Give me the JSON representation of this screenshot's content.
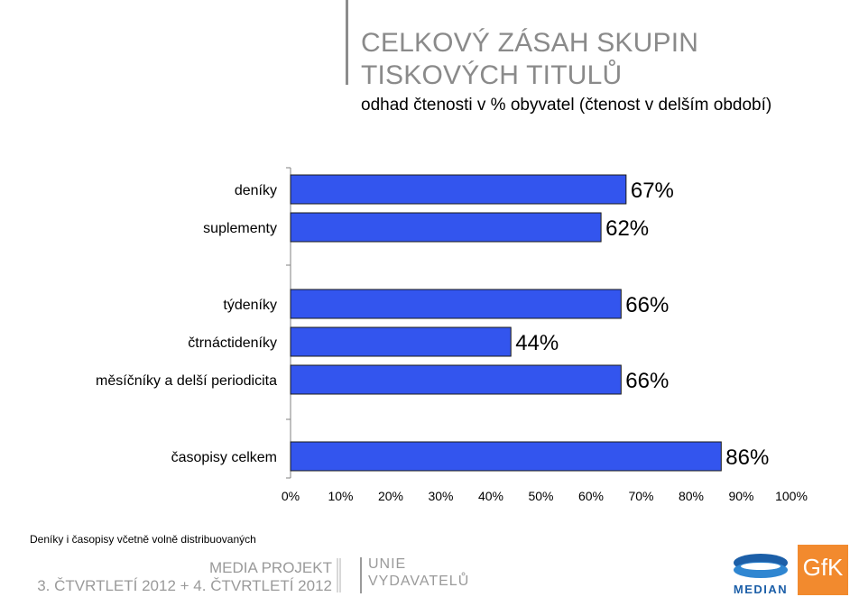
{
  "title_lines": [
    "CELKOVÝ ZÁSAH SKUPIN",
    "TISKOVÝCH TITULŮ"
  ],
  "subtitle": "odhad čtenosti v % obyvatel (čtenost v delším období)",
  "chart_data": {
    "type": "bar",
    "orientation": "horizontal",
    "categories": [
      "deníky",
      "suplementy",
      "týdeníky",
      "čtrnáctideníky",
      "měsíčníky a delší periodicita",
      "časopisy celkem"
    ],
    "values": [
      67,
      62,
      66,
      44,
      66,
      86
    ],
    "data_labels": [
      "67%",
      "62%",
      "66%",
      "44%",
      "66%",
      "86%"
    ],
    "xlim": [
      0,
      100
    ],
    "x_ticks": [
      "0%",
      "10%",
      "20%",
      "30%",
      "40%",
      "50%",
      "60%",
      "70%",
      "80%",
      "90%",
      "100%"
    ],
    "groups": [
      [
        0,
        1
      ],
      [
        2,
        3,
        4
      ],
      [
        5
      ]
    ],
    "grid": false,
    "bar_color": "#3355ee"
  },
  "footnote": "Deníky i časopisy včetně volně distribuovaných",
  "footer": {
    "media_projekt": "MEDIA PROJEKT",
    "period": "3. ČTVRTLETÍ 2012 + 4. ČTVRTLETÍ 2012",
    "unie": "UNIE",
    "vydavatelu": "VYDAVATELŮ",
    "median": "MEDIAN",
    "gfk": "GfK"
  }
}
